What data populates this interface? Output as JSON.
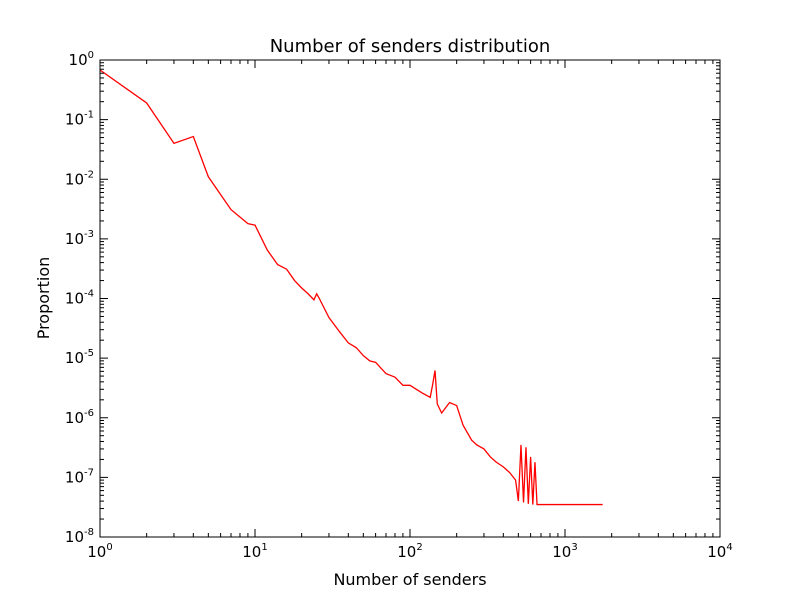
{
  "chart_data": {
    "type": "line",
    "title": "Number of senders distribution",
    "xlabel": "Number of senders",
    "ylabel": "Proportion",
    "xscale": "log",
    "yscale": "log",
    "xlim": [
      1,
      10000
    ],
    "ylim": [
      1e-08,
      1
    ],
    "grid": false,
    "x_ticks": [
      {
        "value": 1,
        "base": "10",
        "exp": "0"
      },
      {
        "value": 10,
        "base": "10",
        "exp": "1"
      },
      {
        "value": 100,
        "base": "10",
        "exp": "2"
      },
      {
        "value": 1000,
        "base": "10",
        "exp": "3"
      },
      {
        "value": 10000,
        "base": "10",
        "exp": "4"
      }
    ],
    "y_ticks": [
      {
        "value": 1,
        "base": "10",
        "exp": "0"
      },
      {
        "value": 0.1,
        "base": "10",
        "exp": "-1"
      },
      {
        "value": 0.01,
        "base": "10",
        "exp": "-2"
      },
      {
        "value": 0.001,
        "base": "10",
        "exp": "-3"
      },
      {
        "value": 0.0001,
        "base": "10",
        "exp": "-4"
      },
      {
        "value": 1e-05,
        "base": "10",
        "exp": "-5"
      },
      {
        "value": 1e-06,
        "base": "10",
        "exp": "-6"
      },
      {
        "value": 1e-07,
        "base": "10",
        "exp": "-7"
      },
      {
        "value": 1e-08,
        "base": "10",
        "exp": "-8"
      }
    ],
    "series": [
      {
        "color": "#ff0000",
        "x": [
          1,
          2,
          3,
          4,
          5,
          7,
          9,
          10,
          12,
          14,
          16,
          18,
          20,
          22,
          24,
          25,
          26,
          30,
          35,
          40,
          45,
          50,
          55,
          60,
          70,
          80,
          90,
          100,
          120,
          135,
          140,
          145,
          150,
          160,
          180,
          200,
          220,
          250,
          270,
          300,
          330,
          360,
          400,
          440,
          480,
          500,
          520,
          540,
          560,
          580,
          600,
          620,
          640,
          660,
          680,
          1750
        ],
        "y": [
          0.68,
          0.19,
          0.04,
          0.052,
          0.011,
          0.0031,
          0.0018,
          0.0017,
          0.00065,
          0.00037,
          0.00031,
          0.0002,
          0.00015,
          0.00012,
          9.5e-05,
          0.00012,
          0.0001,
          4.8e-05,
          2.8e-05,
          1.8e-05,
          1.5e-05,
          1.1e-05,
          9e-06,
          8.5e-06,
          5.5e-06,
          4.8e-06,
          3.5e-06,
          3.5e-06,
          2.6e-06,
          2.2e-06,
          3.6e-06,
          6.2e-06,
          1.7e-06,
          1.2e-06,
          1.8e-06,
          1.6e-06,
          7.5e-07,
          4.2e-07,
          3.5e-07,
          3e-07,
          2.2e-07,
          1.8e-07,
          1.5e-07,
          1.2e-07,
          9e-08,
          4e-08,
          3.5e-07,
          3.8e-08,
          3.2e-07,
          3.6e-08,
          2.2e-07,
          3.5e-08,
          1.8e-07,
          3.5e-08,
          3.5e-08,
          3.5e-08
        ]
      }
    ]
  }
}
